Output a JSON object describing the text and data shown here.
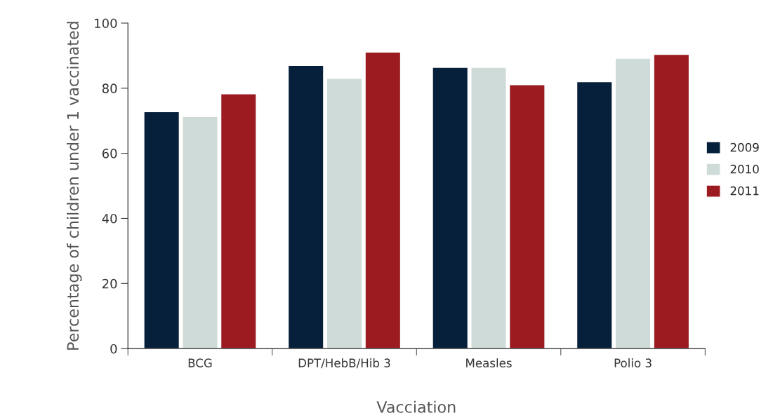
{
  "chart_data": {
    "type": "bar",
    "xlabel": "Vacciation",
    "ylabel": "Percentage of children under 1 vaccinated",
    "categories": [
      "BCG",
      "DPT/HebB/Hib 3",
      "Measles",
      "Polio 3"
    ],
    "series": [
      {
        "name": "2009",
        "color": "#061f3a",
        "values": [
          72.8,
          87.0,
          86.4,
          82.0
        ]
      },
      {
        "name": "2010",
        "color": "#cfdbd8",
        "values": [
          71.3,
          83.0,
          86.4,
          89.2
        ]
      },
      {
        "name": "2011",
        "color": "#9b1b20",
        "values": [
          78.3,
          91.1,
          81.1,
          90.4
        ]
      }
    ],
    "ylim": [
      0,
      100
    ],
    "yticks": [
      0,
      20,
      40,
      60,
      80,
      100
    ],
    "grid": false,
    "legend": "right"
  }
}
